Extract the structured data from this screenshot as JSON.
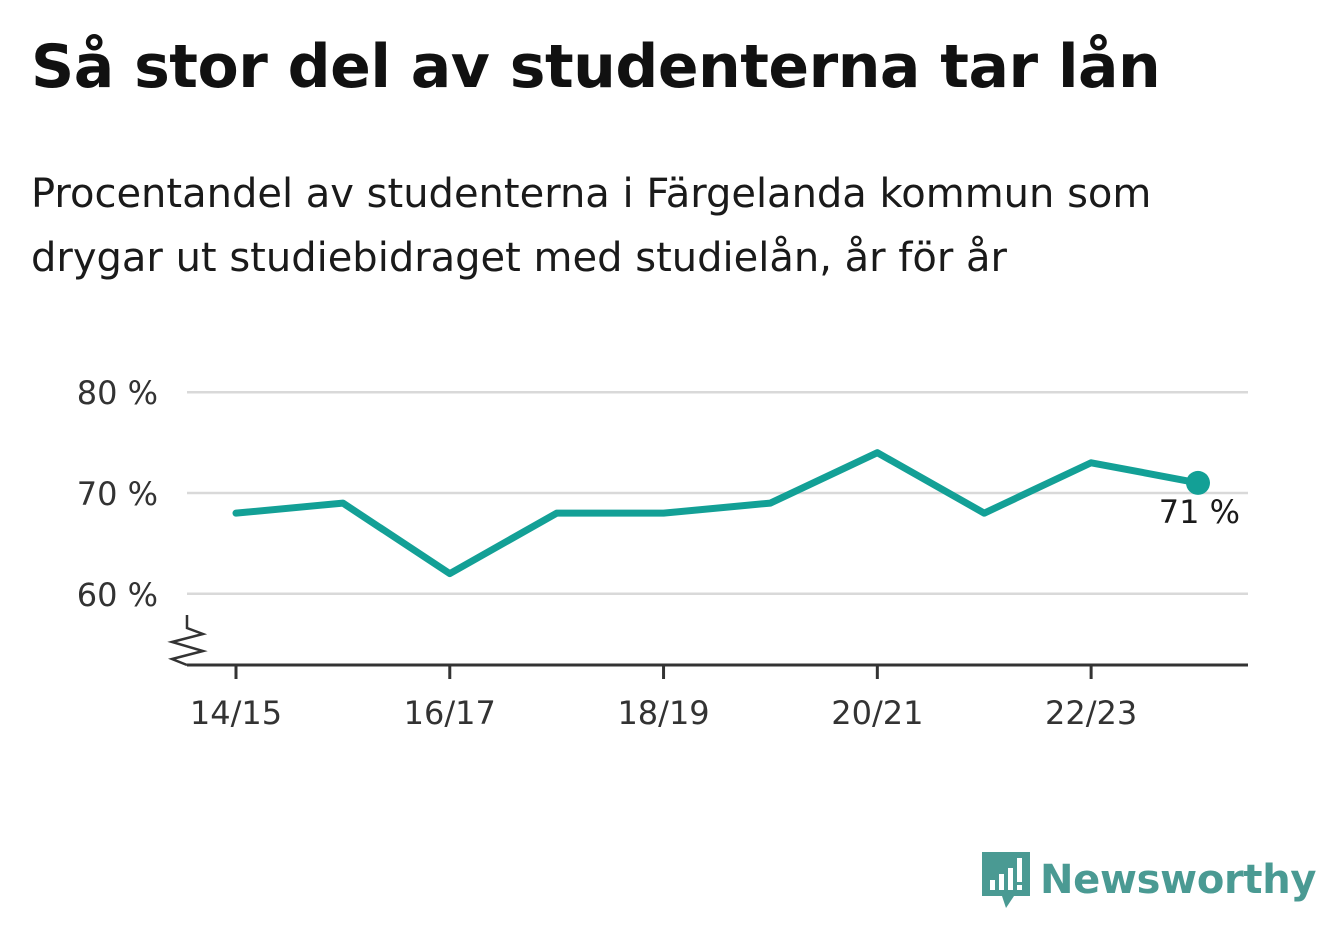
{
  "header": {
    "title": "Så stor del av studenterna tar lån",
    "subtitle": "Procentandel av studenterna i Färgelanda kommun som drygar ut studiebidraget med studielån, år för år"
  },
  "brand": {
    "name": "Newsworthy",
    "icon": "newsworthy-logo-icon",
    "color": "#4a9a93"
  },
  "chart_data": {
    "type": "line",
    "x": [
      "14/15",
      "15/16",
      "16/17",
      "17/18",
      "18/19",
      "19/20",
      "20/21",
      "21/22",
      "22/23",
      "23/24"
    ],
    "x_tick_labels": [
      "14/15",
      "16/17",
      "18/19",
      "20/21",
      "22/23"
    ],
    "series": [
      {
        "values": [
          68,
          69,
          62,
          68,
          68,
          69,
          74,
          68,
          73,
          71
        ],
        "color": "#13a096"
      }
    ],
    "y_ticks": [
      60,
      70,
      80
    ],
    "y_tick_labels": [
      "60 %",
      "70 %",
      "80 %"
    ],
    "ylim": [
      54,
      80
    ],
    "y_axis_break": true,
    "grid": true,
    "last_point_label": "71 %",
    "grid_color": "#d9d9d9",
    "axis_color": "#333333"
  }
}
